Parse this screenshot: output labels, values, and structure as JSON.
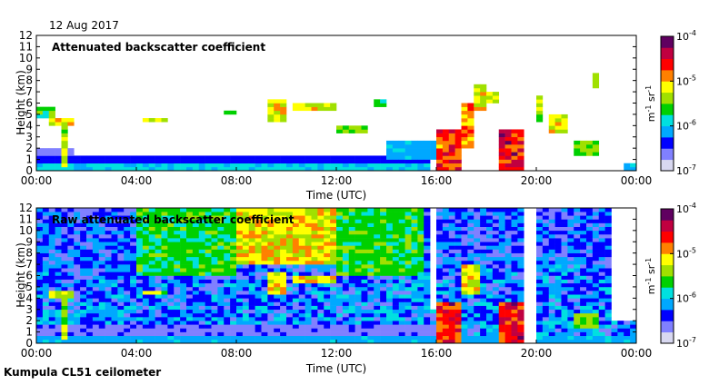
{
  "header": {
    "date": "12 Aug 2017"
  },
  "footer": {
    "instrument": "Kumpula CL51 ceilometer"
  },
  "colors": {
    "background": "#ffffff",
    "sky_base": "#ffffff",
    "colormap": [
      "#d8d8f0",
      "#8080ff",
      "#0000ff",
      "#00a8ff",
      "#00e0e0",
      "#00d000",
      "#a0e000",
      "#ffff00",
      "#ff8000",
      "#ff0000",
      "#c00040",
      "#600060"
    ]
  },
  "chart_data": [
    {
      "type": "heatmap",
      "title": "Attenuated backscatter coefficient",
      "xlabel": "Time (UTC)",
      "ylabel": "Height (km)",
      "xlim": [
        0,
        24
      ],
      "ylim": [
        0,
        12
      ],
      "xticks": [
        0,
        4,
        8,
        12,
        16,
        20,
        24
      ],
      "xtick_labels": [
        "00:00",
        "04:00",
        "08:00",
        "12:00",
        "16:00",
        "20:00",
        "00:00"
      ],
      "yticks": [
        0,
        1,
        2,
        3,
        4,
        5,
        6,
        7,
        8,
        9,
        10,
        11,
        12
      ],
      "ytick_labels": [
        "0",
        "1",
        "2",
        "3",
        "4",
        "5",
        "6",
        "7",
        "8",
        "9",
        "10",
        "11",
        "12"
      ],
      "colorbar": {
        "scale": "log",
        "range": [
          1e-07,
          0.0001
        ],
        "ticks": [
          -7,
          -6,
          -5,
          -4
        ],
        "tick_labels": [
          "10",
          "10",
          "10",
          "10"
        ],
        "tick_exponents": [
          "-7",
          "-6",
          "-5",
          "-4"
        ],
        "unit_m": "m",
        "unit_m_exp": "-1",
        "unit_sr": "sr",
        "unit_sr_exp": "-1"
      },
      "noise_level": 0.0,
      "features": [
        {
          "t0": 0.0,
          "t1": 15.8,
          "h0": 0.0,
          "h1": 0.5,
          "v": 0.35
        },
        {
          "t0": 0.0,
          "t1": 15.8,
          "h0": 0.5,
          "h1": 1.2,
          "v": 0.2
        },
        {
          "t0": 0.0,
          "t1": 1.5,
          "h0": 1.2,
          "h1": 2.0,
          "v": 0.15
        },
        {
          "t0": 0.1,
          "t1": 0.8,
          "h0": 4.8,
          "h1": 5.6,
          "v": 0.45
        },
        {
          "t0": 0.6,
          "t1": 1.6,
          "h0": 4.0,
          "h1": 4.6,
          "v": 0.62
        },
        {
          "t0": 1.1,
          "t1": 1.3,
          "h0": 0.2,
          "h1": 4.2,
          "v": 0.55
        },
        {
          "t0": 4.3,
          "t1": 5.2,
          "h0": 4.3,
          "h1": 4.7,
          "v": 0.55
        },
        {
          "t0": 7.5,
          "t1": 8.0,
          "h0": 5.0,
          "h1": 5.4,
          "v": 0.5
        },
        {
          "t0": 9.2,
          "t1": 10.0,
          "h0": 4.5,
          "h1": 6.3,
          "v": 0.6
        },
        {
          "t0": 10.3,
          "t1": 12.0,
          "h0": 5.2,
          "h1": 6.0,
          "v": 0.6
        },
        {
          "t0": 12.0,
          "t1": 13.2,
          "h0": 3.5,
          "h1": 4.0,
          "v": 0.5
        },
        {
          "t0": 13.5,
          "t1": 13.9,
          "h0": 5.7,
          "h1": 6.3,
          "v": 0.45
        },
        {
          "t0": 14.0,
          "t1": 16.0,
          "h0": 1.0,
          "h1": 2.5,
          "v": 0.3
        },
        {
          "t0": 16.0,
          "t1": 17.0,
          "h0": 0.0,
          "h1": 3.5,
          "v": 0.78
        },
        {
          "t0": 17.0,
          "t1": 17.4,
          "h0": 2.0,
          "h1": 6.0,
          "v": 0.68
        },
        {
          "t0": 17.4,
          "t1": 18.0,
          "h0": 5.5,
          "h1": 7.5,
          "v": 0.62
        },
        {
          "t0": 18.0,
          "t1": 18.4,
          "h0": 6.0,
          "h1": 7.0,
          "v": 0.55
        },
        {
          "t0": 18.4,
          "t1": 19.6,
          "h0": 0.0,
          "h1": 3.5,
          "v": 0.82
        },
        {
          "t0": 19.6,
          "t1": 20.2,
          "h0": 4.5,
          "h1": 6.5,
          "v": 0.55
        },
        {
          "t0": 20.4,
          "t1": 21.2,
          "h0": 3.5,
          "h1": 5.0,
          "v": 0.6
        },
        {
          "t0": 21.6,
          "t1": 22.5,
          "h0": 1.5,
          "h1": 2.8,
          "v": 0.5
        },
        {
          "t0": 22.2,
          "t1": 22.6,
          "h0": 7.5,
          "h1": 8.7,
          "v": 0.52
        },
        {
          "t0": 23.5,
          "t1": 24.0,
          "h0": 0.0,
          "h1": 0.5,
          "v": 0.3
        }
      ],
      "gaps": [
        {
          "t0": 19.6,
          "t1": 19.9,
          "h0": 0.0,
          "h1": 12.0
        }
      ]
    },
    {
      "type": "heatmap",
      "title": "Raw attenuated backscatter coefficient",
      "xlabel": "Time (UTC)",
      "ylabel": "Height (km)",
      "xlim": [
        0,
        24
      ],
      "ylim": [
        0,
        12
      ],
      "xticks": [
        0,
        4,
        8,
        12,
        16,
        20,
        24
      ],
      "xtick_labels": [
        "00:00",
        "04:00",
        "08:00",
        "12:00",
        "16:00",
        "20:00",
        "00:00"
      ],
      "yticks": [
        0,
        1,
        2,
        3,
        4,
        5,
        6,
        7,
        8,
        9,
        10,
        11,
        12
      ],
      "ytick_labels": [
        "0",
        "1",
        "2",
        "3",
        "4",
        "5",
        "6",
        "7",
        "8",
        "9",
        "10",
        "11",
        "12"
      ],
      "colorbar": {
        "scale": "log",
        "range": [
          1e-07,
          0.0001
        ],
        "ticks": [
          -7,
          -6,
          -5,
          -4
        ],
        "tick_labels": [
          "10",
          "10",
          "10",
          "10"
        ],
        "tick_exponents": [
          "-7",
          "-6",
          "-5",
          "-4"
        ],
        "unit_m": "m",
        "unit_m_exp": "-1",
        "unit_sr": "sr",
        "unit_sr_exp": "-1"
      },
      "noise_level": 0.4,
      "features": [
        {
          "t0": 0.0,
          "t1": 24.0,
          "h0": 0.0,
          "h1": 0.6,
          "v": 0.3
        },
        {
          "t0": 0.0,
          "t1": 16.0,
          "h0": 0.6,
          "h1": 1.5,
          "v": 0.15
        },
        {
          "t0": 8.0,
          "t1": 12.0,
          "h0": 7.0,
          "h1": 12.0,
          "v": 0.62
        },
        {
          "t0": 4.0,
          "t1": 8.0,
          "h0": 6.0,
          "h1": 12.0,
          "v": 0.45
        },
        {
          "t0": 12.0,
          "t1": 15.5,
          "h0": 6.0,
          "h1": 12.0,
          "v": 0.45
        },
        {
          "t0": 0.6,
          "t1": 1.6,
          "h0": 4.0,
          "h1": 4.6,
          "v": 0.6
        },
        {
          "t0": 1.1,
          "t1": 1.3,
          "h0": 0.2,
          "h1": 4.2,
          "v": 0.55
        },
        {
          "t0": 4.3,
          "t1": 5.2,
          "h0": 4.3,
          "h1": 4.7,
          "v": 0.55
        },
        {
          "t0": 9.2,
          "t1": 10.0,
          "h0": 4.5,
          "h1": 6.3,
          "v": 0.62
        },
        {
          "t0": 10.3,
          "t1": 12.0,
          "h0": 5.2,
          "h1": 6.0,
          "v": 0.62
        },
        {
          "t0": 16.0,
          "t1": 17.0,
          "h0": 0.0,
          "h1": 3.5,
          "v": 0.8
        },
        {
          "t0": 17.0,
          "t1": 17.8,
          "h0": 4.5,
          "h1": 7.0,
          "v": 0.6
        },
        {
          "t0": 18.4,
          "t1": 19.6,
          "h0": 0.0,
          "h1": 3.5,
          "v": 0.82
        },
        {
          "t0": 21.6,
          "t1": 22.5,
          "h0": 1.5,
          "h1": 2.8,
          "v": 0.5
        }
      ],
      "gaps": [
        {
          "t0": 15.8,
          "t1": 16.0,
          "h0": 3.0,
          "h1": 12.0
        },
        {
          "t0": 19.6,
          "t1": 19.9,
          "h0": 0.0,
          "h1": 12.0
        },
        {
          "t0": 23.0,
          "t1": 24.0,
          "h0": 2.0,
          "h1": 12.0
        }
      ]
    }
  ]
}
